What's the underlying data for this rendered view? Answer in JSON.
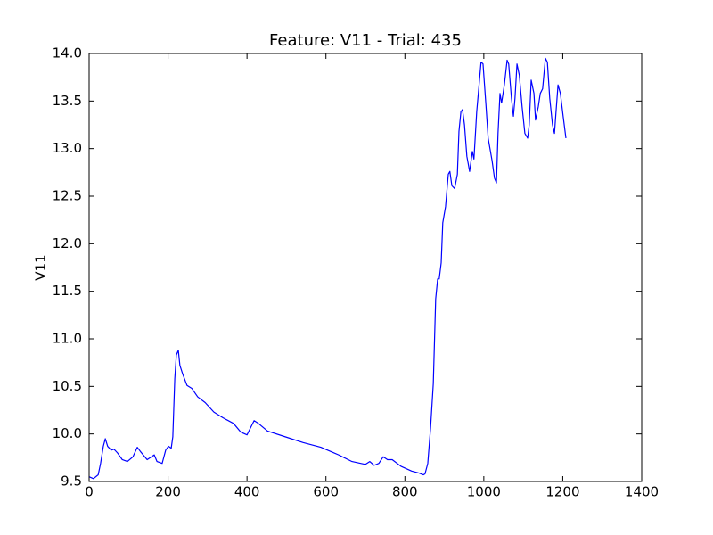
{
  "chart_data": {
    "type": "line",
    "title": "Feature: V11 - Trial: 435",
    "ylabel": "V11",
    "color": "#0000ff",
    "x": [
      0,
      11,
      23,
      29,
      36,
      41,
      47,
      56,
      63,
      72,
      84,
      97,
      111,
      122,
      131,
      147,
      158,
      165,
      172,
      185,
      194,
      201,
      208,
      212,
      217,
      221,
      226,
      230,
      237,
      248,
      260,
      275,
      294,
      316,
      339,
      366,
      384,
      400,
      406,
      418,
      429,
      452,
      497,
      542,
      587,
      632,
      666,
      700,
      711,
      722,
      734,
      745,
      756,
      768,
      790,
      817,
      835,
      847,
      851,
      858,
      865,
      872,
      878,
      883,
      887,
      892,
      896,
      903,
      910,
      914,
      919,
      926,
      933,
      937,
      942,
      946,
      951,
      957,
      964,
      971,
      975,
      982,
      989,
      993,
      998,
      1005,
      1011,
      1021,
      1027,
      1032,
      1036,
      1041,
      1045,
      1052,
      1059,
      1063,
      1070,
      1075,
      1079,
      1084,
      1090,
      1097,
      1104,
      1111,
      1115,
      1120,
      1127,
      1131,
      1138,
      1143,
      1149,
      1156,
      1161,
      1167,
      1174,
      1179,
      1183,
      1188,
      1194,
      1201,
      1208
    ],
    "values": [
      9.55,
      9.53,
      9.57,
      9.69,
      9.87,
      9.95,
      9.87,
      9.83,
      9.84,
      9.8,
      9.73,
      9.71,
      9.76,
      9.86,
      9.81,
      9.73,
      9.76,
      9.78,
      9.71,
      9.69,
      9.83,
      9.87,
      9.85,
      9.97,
      10.58,
      10.83,
      10.88,
      10.72,
      10.63,
      10.51,
      10.48,
      10.39,
      10.33,
      10.23,
      10.17,
      10.11,
      10.02,
      9.99,
      10.04,
      10.14,
      10.11,
      10.03,
      9.97,
      9.91,
      9.86,
      9.78,
      9.71,
      9.68,
      9.71,
      9.67,
      9.69,
      9.76,
      9.73,
      9.73,
      9.66,
      9.61,
      9.59,
      9.57,
      9.58,
      9.69,
      10.06,
      10.53,
      11.42,
      11.63,
      11.63,
      11.8,
      12.22,
      12.39,
      12.73,
      12.76,
      12.61,
      12.58,
      12.73,
      13.18,
      13.39,
      13.41,
      13.25,
      12.92,
      12.76,
      12.97,
      12.89,
      13.39,
      13.72,
      13.91,
      13.89,
      13.48,
      13.11,
      12.87,
      12.69,
      12.64,
      13.16,
      13.58,
      13.48,
      13.67,
      13.93,
      13.89,
      13.53,
      13.34,
      13.53,
      13.89,
      13.77,
      13.44,
      13.16,
      13.11,
      13.25,
      13.72,
      13.58,
      13.3,
      13.44,
      13.58,
      13.63,
      13.95,
      13.91,
      13.53,
      13.25,
      13.16,
      13.39,
      13.67,
      13.58,
      13.34,
      13.11
    ],
    "xlim": [
      0,
      1400
    ],
    "xticks": [
      0,
      200,
      400,
      600,
      800,
      1000,
      1200,
      1400
    ],
    "ylim": [
      9.5,
      14
    ],
    "yticks": [
      9.5,
      {
        "value": 10,
        "label": "10.0"
      },
      10.5,
      {
        "value": 11,
        "label": "11.0"
      },
      11.5,
      {
        "value": 12,
        "label": "12.0"
      },
      12.5,
      {
        "value": 13,
        "label": "13.0"
      },
      13.5,
      {
        "value": 14,
        "label": "14.0"
      }
    ],
    "grid": false
  }
}
